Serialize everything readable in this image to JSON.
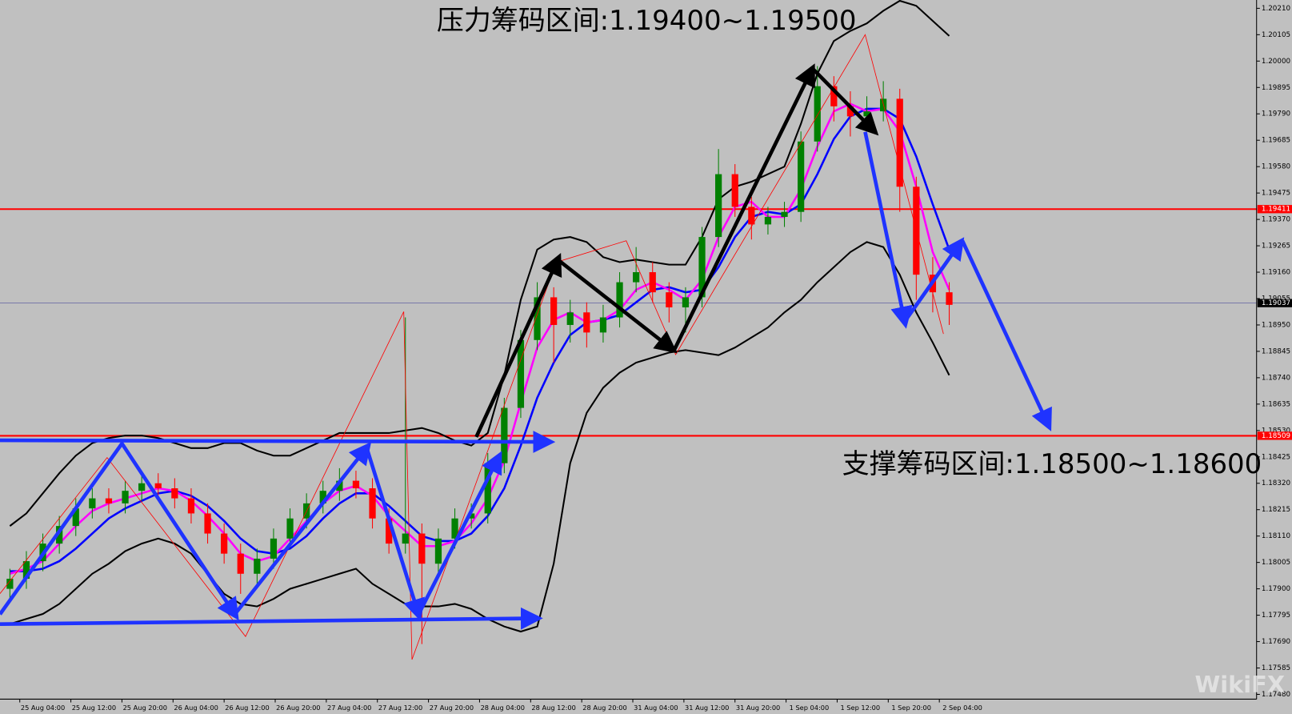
{
  "chart_data": {
    "type": "candlestick",
    "title": "压力筹码区间:1.19400~1.19500",
    "subtitle": "支撑筹码区间:1.18500~1.18600",
    "watermark": "WikiFX",
    "ylim": [
      1.17461,
      1.20243
    ],
    "yticks": [
      {
        "value": 1.2021,
        "label": "1.20210"
      },
      {
        "value": 1.20105,
        "label": "1.20105"
      },
      {
        "value": 1.2,
        "label": "1.20000"
      },
      1.19895,
      {
        "value": 1.1979,
        "label": "1.19790"
      },
      1.19685,
      {
        "value": 1.1958,
        "label": "1.19580"
      },
      1.19475,
      {
        "value": 1.1937,
        "label": "1.19370"
      },
      1.19265,
      {
        "value": 1.1916,
        "label": "1.19160"
      },
      1.19055,
      {
        "value": 1.1895,
        "label": "1.18950"
      },
      1.18845,
      {
        "value": 1.1874,
        "label": "1.18740"
      },
      1.18635,
      {
        "value": 1.1853,
        "label": "1.18530"
      },
      1.18425,
      {
        "value": 1.1832,
        "label": "1.18320"
      },
      1.18215,
      {
        "value": 1.1811,
        "label": "1.18110"
      },
      1.18005,
      {
        "value": 1.179,
        "label": "1.17900"
      },
      1.17795,
      {
        "value": 1.1769,
        "label": "1.17690"
      },
      1.17585,
      {
        "value": 1.1748,
        "label": "1.17480"
      }
    ],
    "categories": [
      "25 Aug 04:00",
      "25 Aug 12:00",
      "25 Aug 20:00",
      "26 Aug 04:00",
      "26 Aug 12:00",
      "26 Aug 20:00",
      "27 Aug 04:00",
      "27 Aug 12:00",
      "27 Aug 20:00",
      "28 Aug 04:00",
      "28 Aug 12:00",
      "28 Aug 20:00",
      "31 Aug 04:00",
      "31 Aug 12:00",
      "31 Aug 20:00",
      "1 Sep 04:00",
      "1 Sep 12:00",
      "1 Sep 20:00",
      "2 Sep 04:00"
    ],
    "up_color": "#008000",
    "down_color": "#ff0000",
    "open": [
      1.179,
      1.1794,
      1.1801,
      1.1808,
      1.1815,
      1.1822,
      1.1826,
      1.1824,
      1.1829,
      1.1832,
      1.183,
      1.1826,
      1.182,
      1.1812,
      1.1804,
      1.1796,
      1.1802,
      1.181,
      1.1818,
      1.1824,
      1.1829,
      1.1833,
      1.183,
      1.1818,
      1.1808,
      1.1812,
      1.18,
      1.181,
      1.1818,
      1.182,
      1.184,
      1.1862,
      1.1889,
      1.1906,
      1.1895,
      1.19,
      1.1892,
      1.1898,
      1.1912,
      1.1916,
      1.1908,
      1.1902,
      1.1906,
      1.193,
      1.1955,
      1.1942,
      1.1935,
      1.1938,
      1.194,
      1.1968,
      1.199,
      1.1982,
      1.1978,
      1.198,
      1.1985,
      1.195,
      1.1915,
      1.1908
    ],
    "high": [
      1.1798,
      1.1805,
      1.1812,
      1.1819,
      1.1826,
      1.183,
      1.183,
      1.1833,
      1.1836,
      1.1836,
      1.1834,
      1.183,
      1.1824,
      1.1816,
      1.1808,
      1.1806,
      1.1814,
      1.1822,
      1.1828,
      1.1833,
      1.1838,
      1.1837,
      1.1834,
      1.1822,
      1.1898,
      1.1816,
      1.1814,
      1.1822,
      1.1824,
      1.1844,
      1.1866,
      1.1893,
      1.1912,
      1.191,
      1.1905,
      1.1904,
      1.1903,
      1.1916,
      1.1926,
      1.192,
      1.1912,
      1.191,
      1.1934,
      1.1965,
      1.1959,
      1.1946,
      1.1942,
      1.1944,
      1.1972,
      1.1998,
      1.1994,
      1.1988,
      1.1986,
      1.1992,
      1.1989,
      1.1954,
      1.1922,
      1.1912
    ],
    "low": [
      1.1786,
      1.179,
      1.1797,
      1.1804,
      1.1811,
      1.1818,
      1.182,
      1.182,
      1.1825,
      1.1826,
      1.1822,
      1.1816,
      1.1808,
      1.18,
      1.1788,
      1.1792,
      1.1798,
      1.1806,
      1.1814,
      1.182,
      1.1825,
      1.1826,
      1.1814,
      1.1804,
      1.1804,
      1.1768,
      1.1796,
      1.1806,
      1.1814,
      1.1816,
      1.1836,
      1.1858,
      1.1885,
      1.188,
      1.1888,
      1.1886,
      1.1888,
      1.1894,
      1.1908,
      1.1904,
      1.1896,
      1.1892,
      1.1902,
      1.1926,
      1.1938,
      1.1929,
      1.1931,
      1.1934,
      1.1936,
      1.1964,
      1.1976,
      1.197,
      1.1974,
      1.1976,
      1.194,
      1.1905,
      1.19,
      1.1895
    ],
    "close": [
      1.1794,
      1.1801,
      1.1808,
      1.1815,
      1.1822,
      1.1826,
      1.1824,
      1.1829,
      1.1832,
      1.183,
      1.1826,
      1.182,
      1.1812,
      1.1804,
      1.1796,
      1.1802,
      1.181,
      1.1818,
      1.1824,
      1.1829,
      1.1833,
      1.183,
      1.1818,
      1.1808,
      1.1812,
      1.18,
      1.181,
      1.1818,
      1.182,
      1.184,
      1.1862,
      1.1889,
      1.1906,
      1.1895,
      1.19,
      1.1892,
      1.1898,
      1.1912,
      1.1916,
      1.1908,
      1.1902,
      1.1906,
      1.193,
      1.1955,
      1.1942,
      1.1935,
      1.1938,
      1.194,
      1.1968,
      1.199,
      1.1982,
      1.1978,
      1.198,
      1.1985,
      1.195,
      1.1915,
      1.1908,
      1.1903
    ],
    "lines": [
      {
        "color": "#000000",
        "values": [
          1.1815,
          1.182,
          1.1828,
          1.1836,
          1.1843,
          1.1848,
          1.185,
          1.1851,
          1.1851,
          1.185,
          1.1848,
          1.1846,
          1.1846,
          1.1848,
          1.1848,
          1.1845,
          1.1843,
          1.1843,
          1.1846,
          1.1849,
          1.1852,
          1.1852,
          1.1852,
          1.1852,
          1.1853,
          1.1854,
          1.1852,
          1.1849,
          1.1847,
          1.1852,
          1.1875,
          1.1905,
          1.1925,
          1.1929,
          1.193,
          1.1928,
          1.1922,
          1.192,
          1.1921,
          1.192,
          1.1919,
          1.1919,
          1.193,
          1.1945,
          1.195,
          1.1952,
          1.1955,
          1.1958,
          1.1975,
          1.1995,
          1.2008,
          1.2012,
          1.2015,
          1.202,
          1.2024,
          1.2022,
          1.2016,
          1.201
        ]
      },
      {
        "color": "#000000",
        "values": [
          1.1776,
          1.1778,
          1.178,
          1.1784,
          1.179,
          1.1796,
          1.18,
          1.1805,
          1.1808,
          1.181,
          1.1808,
          1.1804,
          1.1796,
          1.1788,
          1.1784,
          1.1783,
          1.1786,
          1.179,
          1.1792,
          1.1794,
          1.1796,
          1.1798,
          1.1792,
          1.1788,
          1.1784,
          1.1783,
          1.1783,
          1.1784,
          1.1782,
          1.1778,
          1.1775,
          1.1773,
          1.1775,
          1.18,
          1.184,
          1.186,
          1.187,
          1.1876,
          1.188,
          1.1882,
          1.1884,
          1.1885,
          1.1884,
          1.1883,
          1.1886,
          1.189,
          1.1894,
          1.19,
          1.1905,
          1.1912,
          1.1918,
          1.1924,
          1.1928,
          1.1926,
          1.1915,
          1.19,
          1.1888,
          1.1875
        ]
      },
      {
        "color": "#0000ff",
        "values": [
          1.1797,
          1.1797,
          1.1798,
          1.1801,
          1.1806,
          1.1812,
          1.1818,
          1.1822,
          1.1825,
          1.1828,
          1.1829,
          1.1827,
          1.1823,
          1.1817,
          1.181,
          1.1805,
          1.1804,
          1.1806,
          1.1811,
          1.1818,
          1.1824,
          1.1828,
          1.1828,
          1.1823,
          1.1817,
          1.1811,
          1.1809,
          1.1809,
          1.1812,
          1.1819,
          1.183,
          1.1847,
          1.1866,
          1.188,
          1.1891,
          1.1896,
          1.1897,
          1.1899,
          1.1904,
          1.1909,
          1.191,
          1.1908,
          1.1909,
          1.1918,
          1.193,
          1.1938,
          1.194,
          1.1939,
          1.1943,
          1.1955,
          1.1969,
          1.1978,
          1.1981,
          1.1981,
          1.1977,
          1.1962,
          1.1943,
          1.1925
        ]
      },
      {
        "color": "#ff00ff",
        "values": [
          1.1796,
          1.1798,
          1.1801,
          1.1808,
          1.1815,
          1.1821,
          1.1824,
          1.1826,
          1.1828,
          1.183,
          1.1829,
          1.1825,
          1.1819,
          1.1812,
          1.1804,
          1.1801,
          1.1803,
          1.181,
          1.1817,
          1.1824,
          1.1829,
          1.1831,
          1.1827,
          1.1819,
          1.1813,
          1.1807,
          1.1807,
          1.1809,
          1.1816,
          1.1826,
          1.1841,
          1.1864,
          1.1886,
          1.1897,
          1.19,
          1.1896,
          1.1897,
          1.1901,
          1.1909,
          1.1912,
          1.1909,
          1.1905,
          1.1913,
          1.193,
          1.1942,
          1.1944,
          1.1938,
          1.1938,
          1.1949,
          1.1966,
          1.198,
          1.1983,
          1.198,
          1.1981,
          1.1972,
          1.195,
          1.1924,
          1.1909
        ]
      }
    ],
    "levels": [
      {
        "value": 1.19411,
        "color": "#ff0000"
      },
      {
        "value": 1.18509,
        "color": "#ff0000"
      },
      {
        "value": 1.19037,
        "color": "#6060a0"
      }
    ]
  }
}
